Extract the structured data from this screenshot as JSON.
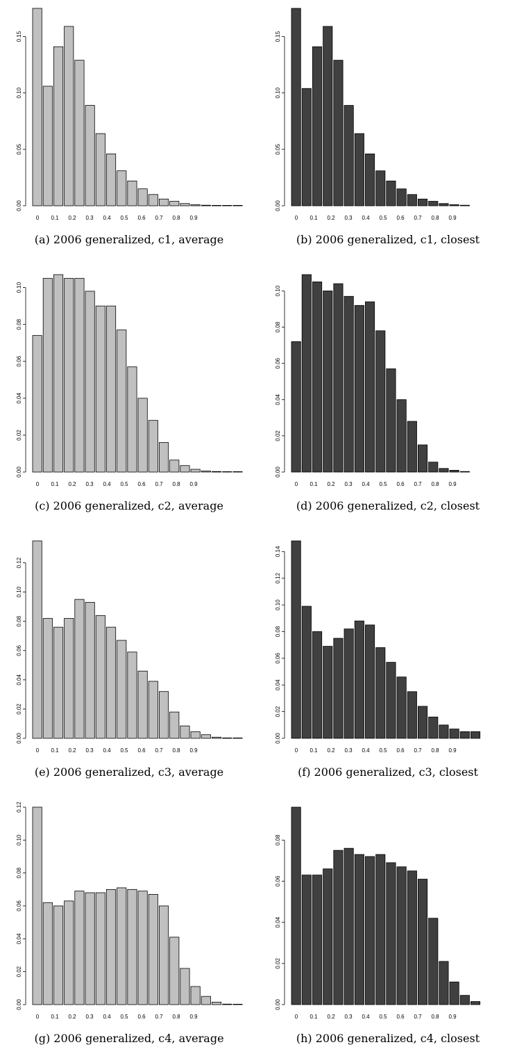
{
  "chart_data": [
    {
      "type": "bar",
      "caption": "(a) 2006 generalized, c1, average",
      "color": "#c0c0c0",
      "x_ticks": [
        "0",
        "0.1",
        "0.2",
        "0.3",
        "0.4",
        "0.5",
        "0.6",
        "0.7",
        "0.8",
        "0.9"
      ],
      "y_ticks": [
        "0.00",
        "0.05",
        "0.10",
        "0.15"
      ],
      "ylim": [
        0,
        0.175
      ],
      "values": [
        0.175,
        0.106,
        0.141,
        0.159,
        0.129,
        0.089,
        0.064,
        0.046,
        0.031,
        0.022,
        0.015,
        0.01,
        0.006,
        0.004,
        0.002,
        0.001,
        0.0005,
        0.0003,
        0.0002,
        0.0001
      ]
    },
    {
      "type": "bar",
      "caption": "(b) 2006 generalized, c1, closest",
      "color": "#404040",
      "x_ticks": [
        "0",
        "0.1",
        "0.2",
        "0.3",
        "0.4",
        "0.5",
        "0.6",
        "0.7",
        "0.8",
        "0.9"
      ],
      "y_ticks": [
        "0.00",
        "0.05",
        "0.10",
        "0.15"
      ],
      "ylim": [
        0,
        0.175
      ],
      "values": [
        0.175,
        0.104,
        0.141,
        0.159,
        0.129,
        0.089,
        0.064,
        0.046,
        0.031,
        0.022,
        0.015,
        0.01,
        0.006,
        0.004,
        0.002,
        0.001,
        0.0005
      ]
    },
    {
      "type": "bar",
      "caption": "(c) 2006 generalized, c2, average",
      "color": "#c0c0c0",
      "x_ticks": [
        "0",
        "0.1",
        "0.2",
        "0.3",
        "0.4",
        "0.5",
        "0.6",
        "0.7",
        "0.8",
        "0.9"
      ],
      "y_ticks": [
        "0.00",
        "0.02",
        "0.04",
        "0.06",
        "0.08",
        "0.10"
      ],
      "ylim": [
        0,
        0.107
      ],
      "values": [
        0.074,
        0.105,
        0.107,
        0.105,
        0.105,
        0.098,
        0.09,
        0.09,
        0.077,
        0.057,
        0.04,
        0.028,
        0.016,
        0.0065,
        0.0035,
        0.0015,
        0.0006,
        0.0003,
        0.0002,
        0.0001
      ]
    },
    {
      "type": "bar",
      "caption": "(d) 2006 generalized, c2, closest",
      "color": "#404040",
      "x_ticks": [
        "0",
        "0.1",
        "0.2",
        "0.3",
        "0.4",
        "0.5",
        "0.6",
        "0.7",
        "0.8",
        "0.9"
      ],
      "y_ticks": [
        "0.00",
        "0.02",
        "0.04",
        "0.06",
        "0.08",
        "0.10"
      ],
      "ylim": [
        0,
        0.109
      ],
      "values": [
        0.072,
        0.109,
        0.105,
        0.1,
        0.104,
        0.097,
        0.092,
        0.094,
        0.078,
        0.057,
        0.04,
        0.028,
        0.015,
        0.0055,
        0.002,
        0.001,
        0.0003
      ]
    },
    {
      "type": "bar",
      "caption": "(e) 2006 generalized, c3, average",
      "color": "#c0c0c0",
      "x_ticks": [
        "0",
        "0.1",
        "0.2",
        "0.3",
        "0.4",
        "0.5",
        "0.6",
        "0.7",
        "0.8",
        "0.9"
      ],
      "y_ticks": [
        "0.00",
        "0.02",
        "0.04",
        "0.06",
        "0.08",
        "0.10",
        "0.12"
      ],
      "ylim": [
        0,
        0.135
      ],
      "values": [
        0.135,
        0.082,
        0.076,
        0.082,
        0.095,
        0.093,
        0.084,
        0.076,
        0.067,
        0.059,
        0.046,
        0.039,
        0.032,
        0.018,
        0.0085,
        0.0045,
        0.0025,
        0.0008,
        0.0003,
        0.0001
      ]
    },
    {
      "type": "bar",
      "caption": "(f) 2006 generalized, c3, closest",
      "color": "#404040",
      "x_ticks": [
        "0",
        "0.1",
        "0.2",
        "0.3",
        "0.4",
        "0.5",
        "0.6",
        "0.7",
        "0.8",
        "0.9"
      ],
      "y_ticks": [
        "0.00",
        "0.02",
        "0.04",
        "0.06",
        "0.08",
        "0.10",
        "0.12",
        "0.14"
      ],
      "ylim": [
        0,
        0.148
      ],
      "values": [
        0.148,
        0.099,
        0.08,
        0.069,
        0.075,
        0.082,
        0.088,
        0.085,
        0.068,
        0.057,
        0.046,
        0.035,
        0.024,
        0.016,
        0.01,
        0.007,
        0.005,
        0.005
      ]
    },
    {
      "type": "bar",
      "caption": "(g) 2006 generalized, c4, average",
      "color": "#c0c0c0",
      "x_ticks": [
        "0",
        "0.1",
        "0.2",
        "0.3",
        "0.4",
        "0.5",
        "0.6",
        "0.7",
        "0.8",
        "0.9"
      ],
      "y_ticks": [
        "0.00",
        "0.02",
        "0.04",
        "0.06",
        "0.08",
        "0.10",
        "0.12"
      ],
      "ylim": [
        0,
        0.12
      ],
      "values": [
        0.12,
        0.062,
        0.06,
        0.063,
        0.069,
        0.068,
        0.068,
        0.07,
        0.071,
        0.07,
        0.069,
        0.067,
        0.06,
        0.041,
        0.022,
        0.011,
        0.005,
        0.0015,
        0.0003,
        0.0001
      ]
    },
    {
      "type": "bar",
      "caption": "(h) 2006 generalized, c4, closest",
      "color": "#404040",
      "x_ticks": [
        "0",
        "0.1",
        "0.2",
        "0.3",
        "0.4",
        "0.5",
        "0.6",
        "0.7",
        "0.8",
        "0.9"
      ],
      "y_ticks": [
        "0.00",
        "0.02",
        "0.04",
        "0.06",
        "0.08"
      ],
      "ylim": [
        0,
        0.096
      ],
      "values": [
        0.096,
        0.063,
        0.063,
        0.066,
        0.075,
        0.076,
        0.073,
        0.072,
        0.073,
        0.069,
        0.067,
        0.065,
        0.061,
        0.042,
        0.021,
        0.011,
        0.0045,
        0.0015
      ]
    }
  ]
}
